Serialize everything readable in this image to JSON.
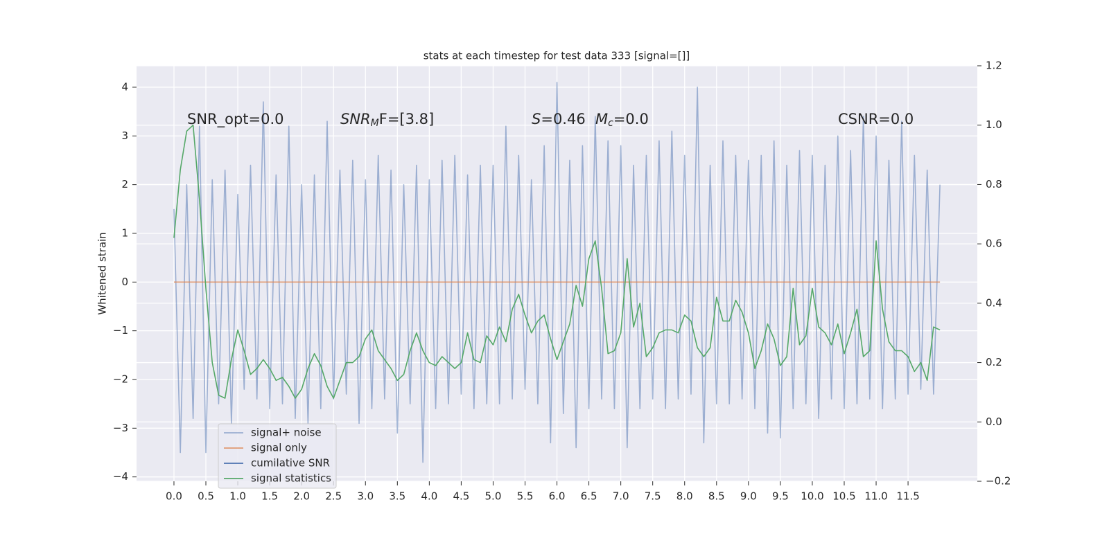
{
  "chart_data": {
    "type": "line",
    "title": "stats at each timestep for test data 333 [signal=[]]",
    "y_label": "Whitened strain",
    "annotations": [
      [
        "SNR_opt=0.0"
      ],
      [
        "SNR",
        "M",
        "F=[3.8]"
      ],
      [
        "S",
        "=0.46"
      ],
      [
        "M",
        "c",
        "=0.0"
      ],
      [
        "CSNR=0.0"
      ]
    ],
    "x": [
      0,
      0.1,
      0.2,
      0.3,
      0.4,
      0.5,
      0.6,
      0.7,
      0.8,
      0.9,
      1,
      1.1,
      1.2,
      1.3,
      1.4,
      1.5,
      1.6,
      1.7,
      1.8,
      1.9,
      2,
      2.1,
      2.2,
      2.3,
      2.4,
      2.5,
      2.6,
      2.7,
      2.8,
      2.9,
      3,
      3.1,
      3.2,
      3.3,
      3.4,
      3.5,
      3.6,
      3.7,
      3.8,
      3.9,
      4,
      4.1,
      4.2,
      4.3,
      4.4,
      4.5,
      4.6,
      4.7,
      4.8,
      4.9,
      5,
      5.1,
      5.2,
      5.3,
      5.4,
      5.5,
      5.6,
      5.7,
      5.8,
      5.9,
      6,
      6.1,
      6.2,
      6.3,
      6.4,
      6.5,
      6.6,
      6.7,
      6.8,
      6.9,
      7,
      7.1,
      7.2,
      7.3,
      7.4,
      7.5,
      7.6,
      7.7,
      7.8,
      7.9,
      8,
      8.1,
      8.2,
      8.3,
      8.4,
      8.5,
      8.6,
      8.7,
      8.8,
      8.9,
      9,
      9.1,
      9.2,
      9.3,
      9.4,
      9.5,
      9.6,
      9.7,
      9.8,
      9.9,
      10,
      10.1,
      10.2,
      10.3,
      10.4,
      10.5,
      10.6,
      10.7,
      10.8,
      10.9,
      11,
      11.1,
      11.2,
      11.3,
      11.4,
      11.5,
      11.6,
      11.7,
      11.8,
      11.9,
      12
    ],
    "series": [
      {
        "name": "signal+ noise",
        "color": "#4c72b0",
        "alpha": 0.5,
        "values": [
          1.5,
          -3.5,
          2.0,
          -2.8,
          3.2,
          -3.5,
          2.1,
          -2.5,
          2.3,
          -2.9,
          1.8,
          -2.2,
          2.4,
          -2.4,
          3.7,
          -2.6,
          2.2,
          -2.5,
          3.2,
          -2.8,
          2.0,
          -2.9,
          2.2,
          -2.6,
          3.3,
          -2.4,
          2.3,
          -2.3,
          2.5,
          -2.9,
          2.1,
          -2.6,
          2.6,
          -2.4,
          2.3,
          -3.1,
          2.0,
          -2.5,
          2.4,
          -3.7,
          2.1,
          -2.6,
          2.5,
          -2.5,
          2.6,
          -2.3,
          2.2,
          -2.6,
          2.4,
          -2.5,
          2.4,
          -2.5,
          3.2,
          -2.4,
          2.6,
          -2.2,
          2.1,
          -2.5,
          2.8,
          -3.3,
          4.1,
          -2.7,
          2.5,
          -3.4,
          2.8,
          -2.6,
          3.4,
          -2.4,
          2.9,
          -2.6,
          2.8,
          -3.4,
          2.4,
          -2.6,
          2.6,
          -2.4,
          2.9,
          -2.6,
          3.1,
          -2.4,
          2.6,
          -2.3,
          4.0,
          -3.3,
          2.4,
          -2.5,
          2.9,
          -2.5,
          2.6,
          -2.4,
          2.5,
          -2.6,
          2.6,
          -3.1,
          2.9,
          -3.2,
          2.4,
          -2.6,
          2.7,
          -2.5,
          2.6,
          -2.8,
          2.4,
          -2.4,
          3.0,
          -2.6,
          2.7,
          -2.5,
          3.4,
          -2.4,
          3.0,
          -2.6,
          2.5,
          -2.4,
          3.3,
          -2.3,
          2.6,
          -2.2,
          2.3,
          -2.3,
          2.0
        ]
      },
      {
        "name": "signal only",
        "color": "#dd8452",
        "alpha": 0.8,
        "x": [
          0,
          12
        ],
        "values": [
          0,
          0
        ]
      },
      {
        "name": "cumilative SNR",
        "color": "#4c72b0",
        "alpha": 1,
        "x": [],
        "values": []
      },
      {
        "name": "signal statistics",
        "color": "#55a868",
        "alpha": 1,
        "axis": "y2",
        "values": [
          0.62,
          0.85,
          0.98,
          1.0,
          0.75,
          0.45,
          0.2,
          0.09,
          0.08,
          0.21,
          0.31,
          0.24,
          0.16,
          0.18,
          0.21,
          0.18,
          0.14,
          0.15,
          0.12,
          0.08,
          0.11,
          0.18,
          0.23,
          0.19,
          0.12,
          0.08,
          0.14,
          0.2,
          0.2,
          0.22,
          0.28,
          0.31,
          0.24,
          0.21,
          0.18,
          0.14,
          0.16,
          0.24,
          0.3,
          0.24,
          0.2,
          0.19,
          0.22,
          0.2,
          0.18,
          0.2,
          0.3,
          0.21,
          0.2,
          0.29,
          0.26,
          0.32,
          0.27,
          0.38,
          0.43,
          0.36,
          0.3,
          0.34,
          0.36,
          0.28,
          0.21,
          0.27,
          0.33,
          0.46,
          0.39,
          0.55,
          0.61,
          0.45,
          0.23,
          0.24,
          0.3,
          0.55,
          0.32,
          0.4,
          0.22,
          0.25,
          0.3,
          0.31,
          0.31,
          0.3,
          0.36,
          0.34,
          0.25,
          0.22,
          0.25,
          0.42,
          0.34,
          0.34,
          0.41,
          0.37,
          0.3,
          0.18,
          0.24,
          0.33,
          0.28,
          0.19,
          0.22,
          0.45,
          0.26,
          0.29,
          0.45,
          0.32,
          0.3,
          0.26,
          0.33,
          0.23,
          0.3,
          0.38,
          0.22,
          0.24,
          0.61,
          0.38,
          0.27,
          0.24,
          0.24,
          0.22,
          0.17,
          0.2,
          0.14,
          0.32,
          0.31
        ]
      }
    ],
    "xlim": [
      -0.586,
      12.585
    ],
    "xticks": [
      {
        "value": 0,
        "label": "0.0"
      },
      0.5,
      {
        "value": 1,
        "label": "1.0"
      },
      1.5,
      {
        "value": 2,
        "label": "2.0"
      },
      2.5,
      {
        "value": 3,
        "label": "3.0"
      },
      3.5,
      {
        "value": 4,
        "label": "4.0"
      },
      4.5,
      {
        "value": 5,
        "label": "5.0"
      },
      5.5,
      {
        "value": 6,
        "label": "6.0"
      },
      6.5,
      {
        "value": 7,
        "label": "7.0"
      },
      7.5,
      {
        "value": 8,
        "label": "8.0"
      },
      8.5,
      {
        "value": 9,
        "label": "9.0"
      },
      9.5,
      {
        "value": 10,
        "label": "10.0"
      },
      10.5,
      {
        "value": 11,
        "label": "11.0"
      },
      11.5
    ],
    "ylim": [
      -4.09,
      4.44
    ],
    "yticks": [
      {
        "value": -4,
        "label": "−4"
      },
      {
        "value": -3,
        "label": "−3"
      },
      {
        "value": -2,
        "label": "−2"
      },
      {
        "value": -1,
        "label": "−1"
      },
      0,
      1,
      2,
      3,
      4
    ],
    "y2lim": [
      -0.2,
      1.2
    ],
    "y2ticks": [
      {
        "value": -0.2,
        "label": "−0.2"
      },
      {
        "value": 0,
        "label": "0.0"
      },
      0.2,
      0.4,
      0.6,
      0.8,
      {
        "value": 1,
        "label": "1.0"
      },
      1.2
    ],
    "grid": true,
    "legend": "lower left"
  }
}
